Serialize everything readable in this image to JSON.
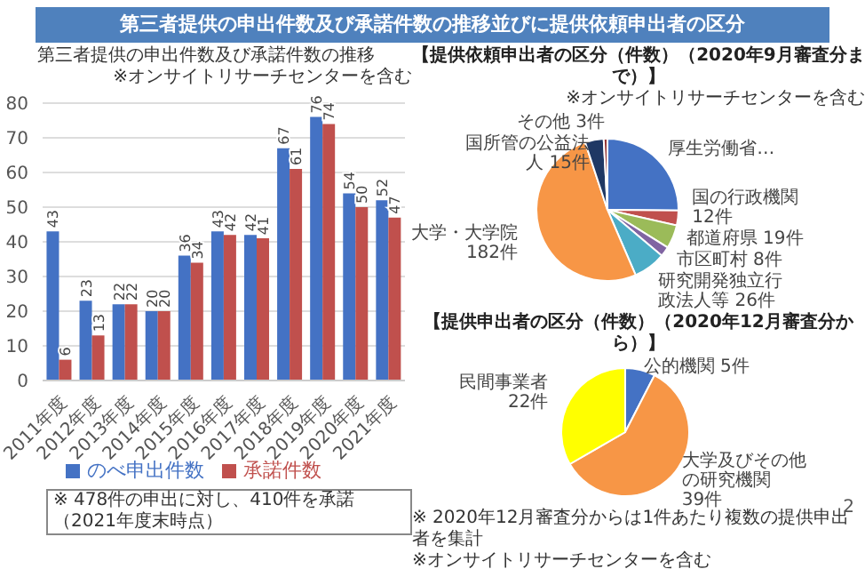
{
  "chart_data": [
    {
      "type": "bar",
      "title": "第三者提供の申出件数及び承諾件数の推移並びに提供依頼申出者の区分",
      "subtitle": "第三者提供の申出件数及び承諾件数の推移",
      "categories": [
        "2011年度",
        "2012年度",
        "2013年度",
        "2014年度",
        "2015年度",
        "2016年度",
        "2017年度",
        "2018年度",
        "2019年度",
        "2020年度",
        "2021年度"
      ],
      "series": [
        {
          "name": "のべ申出件数",
          "color": "#4472c4",
          "values": [
            43,
            23,
            22,
            20,
            36,
            43,
            42,
            67,
            76,
            54,
            52
          ]
        },
        {
          "name": "承諾件数",
          "color": "#c0504d",
          "values": [
            6,
            13,
            22,
            20,
            34,
            42,
            41,
            61,
            74,
            50,
            47
          ]
        }
      ],
      "ylim": [
        0,
        80
      ],
      "yticks": [
        0,
        10,
        20,
        30,
        40,
        50,
        60,
        70,
        80
      ],
      "grid": "y",
      "legend": "bottom",
      "data_labels": true,
      "annotations": [
        "※オンサイトリサーチセンターを含む",
        "※ 478件の申出に対し、410件を承諾（2021年度末時点）"
      ]
    },
    {
      "type": "pie",
      "title": "【提供依頼申出者の区分（件数）（2020年9月審査分まで）】",
      "categories": [
        "厚生労働省…",
        "国の行政機関",
        "都道府県",
        "市区町村",
        "研究開発独立行政法人等",
        "大学・大学院",
        "国所管の公益法人",
        "その他"
      ],
      "values": [
        89,
        12,
        19,
        8,
        26,
        182,
        15,
        3
      ],
      "value_labels": [
        null,
        "12件",
        "19件",
        "8件",
        "26件",
        "182件",
        "15件",
        "3件"
      ],
      "colors": [
        "#4472c4",
        "#c0504d",
        "#9bbb59",
        "#8064a2",
        "#4bacc6",
        "#f79646",
        "#1f3864",
        "#953735"
      ],
      "annotations": [
        "※オンサイトリサーチセンターを含む"
      ]
    },
    {
      "type": "pie",
      "title": "【提供申出者の区分（件数）（2020年12月審査分から）】",
      "categories": [
        "公的機関",
        "大学及びその他の研究機関",
        "民間事業者"
      ],
      "values": [
        5,
        39,
        22
      ],
      "value_labels": [
        "5件",
        "39件",
        "22件"
      ],
      "colors": [
        "#4472c4",
        "#f79646",
        "#ffff00"
      ],
      "annotations": [
        "※ 2020年12月審査分からは1件あたり複数の提供申出者を集計",
        "※オンサイトリサーチセンターを含む",
        "2"
      ]
    }
  ]
}
